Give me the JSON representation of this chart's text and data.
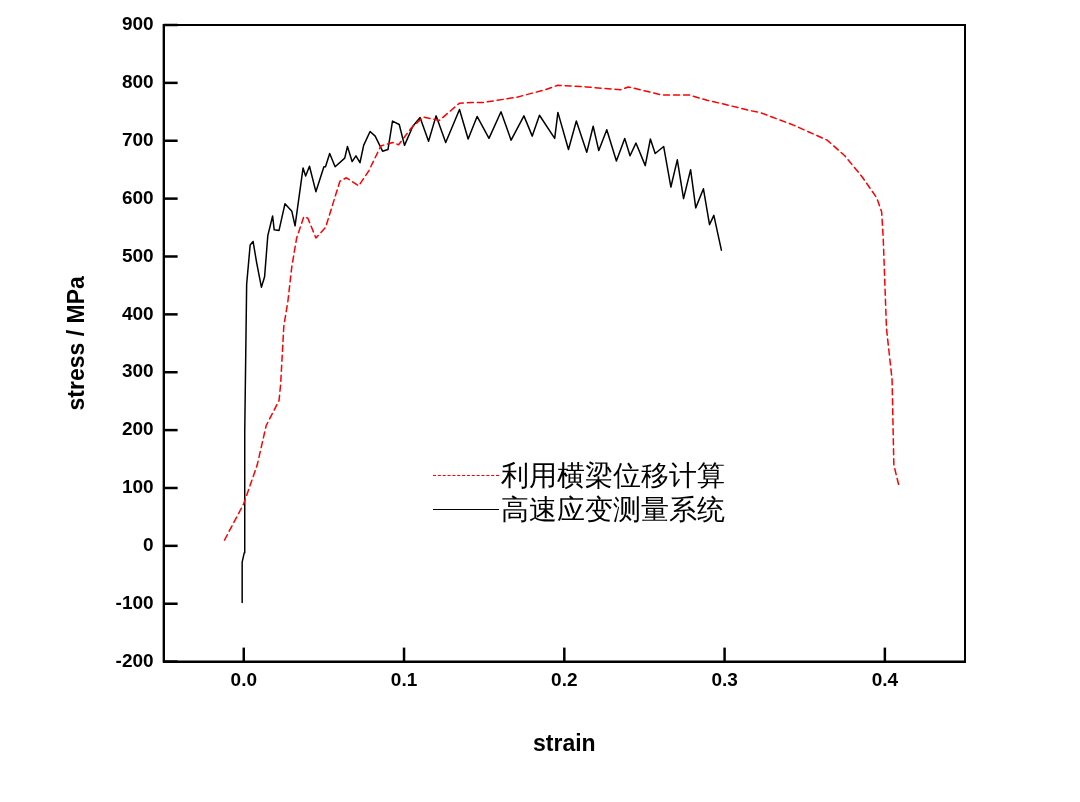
{
  "chart_data": {
    "type": "line",
    "xlabel": "strain",
    "ylabel": "stress / MPa",
    "xlim": [
      -0.05,
      0.45
    ],
    "xticks": [
      {
        "value": 0,
        "label": "0.0"
      },
      0.1,
      0.2,
      0.3,
      0.4
    ],
    "ylim": [
      -200,
      900
    ],
    "yticks": [
      -200,
      -100,
      0,
      100,
      200,
      300,
      400,
      500,
      600,
      700,
      800,
      900
    ],
    "grid": false,
    "legend": "bottom",
    "marker": "none",
    "series": [
      {
        "name": "利用横梁位移计算",
        "color": "#ff0000",
        "line_style": "dashed",
        "x": [
          -0.012,
          0.0,
          0.0084,
          0.014,
          0.022,
          0.023,
          0.025,
          0.0275,
          0.03,
          0.033,
          0.0375,
          0.04,
          0.045,
          0.051,
          0.06,
          0.064,
          0.0717,
          0.078,
          0.0855,
          0.093,
          0.0966,
          0.1045,
          0.112,
          0.122,
          0.1346,
          0.142,
          0.149,
          0.17,
          0.188,
          0.196,
          0.2136,
          0.235,
          0.24,
          0.261,
          0.278,
          0.289,
          0.3,
          0.316,
          0.322,
          0.343,
          0.364,
          0.375,
          0.386,
          0.395,
          0.398,
          0.399,
          0.401,
          0.4045,
          0.4056,
          0.409
        ],
        "values": [
          10,
          73,
          140,
          208,
          251,
          279,
          380,
          422,
          483,
          532,
          569,
          566,
          532,
          550,
          630,
          636,
          622,
          648,
          691,
          697,
          693,
          722,
          741,
          735,
          765,
          766,
          766,
          775,
          788,
          796,
          793,
          788,
          793,
          779,
          779,
          770,
          763,
          752,
          749,
          727,
          701,
          674,
          637,
          601,
          577,
          530,
          376,
          287,
          140,
          101
        ]
      },
      {
        "name": "高速应变测量系统",
        "color": "#000000",
        "line_style": "solid",
        "x": [
          -0.001,
          -0.001,
          0.0003,
          0.0006,
          0.0018,
          0.004,
          0.0058,
          0.008,
          0.011,
          0.013,
          0.015,
          0.018,
          0.019,
          0.022,
          0.0257,
          0.03,
          0.032,
          0.037,
          0.0386,
          0.041,
          0.045,
          0.05,
          0.051,
          0.0536,
          0.057,
          0.063,
          0.0647,
          0.0676,
          0.07,
          0.0725,
          0.0748,
          0.0788,
          0.082,
          0.0866,
          0.09,
          0.0928,
          0.097,
          0.1003,
          0.1055,
          0.11,
          0.1153,
          0.12,
          0.126,
          0.1346,
          0.14,
          0.1456,
          0.153,
          0.1605,
          0.1668,
          0.1748,
          0.18,
          0.1845,
          0.194,
          0.196,
          0.2026,
          0.2075,
          0.214,
          0.218,
          0.2215,
          0.2265,
          0.2325,
          0.2377,
          0.241,
          0.2447,
          0.2505,
          0.2537,
          0.2567,
          0.262,
          0.2665,
          0.2705,
          0.2744,
          0.2788,
          0.282,
          0.2868,
          0.2906,
          0.2933,
          0.298
        ],
        "values": [
          -98,
          -28,
          -12,
          196,
          452,
          520,
          526,
          490,
          447,
          465,
          536,
          570,
          546,
          545,
          591,
          578,
          553,
          653,
          639,
          656,
          612,
          655,
          655,
          678,
          655,
          670,
          690,
          664,
          674,
          662,
          692,
          716,
          708,
          682,
          685,
          734,
          728,
          692,
          725,
          740,
          699,
          743,
          697,
          754,
          703,
          742,
          704,
          750,
          701,
          743,
          708,
          744,
          704,
          749,
          685,
          734,
          680,
          725,
          683,
          719,
          665,
          704,
          674,
          696,
          657,
          703,
          678,
          690,
          620,
          667,
          600,
          650,
          584,
          617,
          555,
          571,
          511
        ]
      }
    ]
  }
}
